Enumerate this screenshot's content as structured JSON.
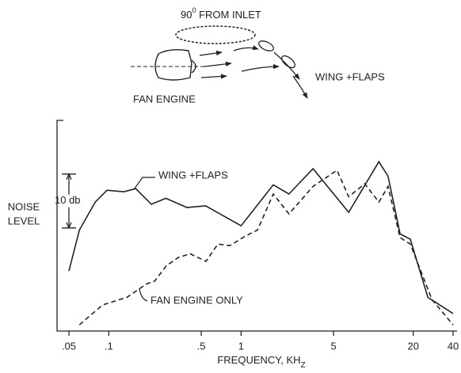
{
  "diagram": {
    "angle_label": {
      "number": "90",
      "superscript": "0",
      "rest": " FROM INLET"
    },
    "wing_label": "WING +FLAPS",
    "engine_label": "FAN ENGINE"
  },
  "chart_data": {
    "type": "line",
    "log_x": true,
    "xlabel": {
      "text": "FREQUENCY, KH",
      "subscript": "Z"
    },
    "ylabel": [
      "NOISE",
      "LEVEL"
    ],
    "xlim": [
      0.05,
      40
    ],
    "ylim": [
      -1,
      38
    ],
    "xticks": [
      {
        "value": 0.05,
        "label": ".05"
      },
      {
        "value": 0.1,
        "label": ".1"
      },
      {
        "value": 0.5,
        "label": ".5"
      },
      1,
      5,
      20,
      40
    ],
    "scale_bar": {
      "label": "10 db",
      "from": 28,
      "to": 18
    },
    "series": [
      {
        "name": "WING +FLAPS",
        "color": "#222",
        "dash": false,
        "x": [
          0.05,
          0.06,
          0.079,
          0.097,
          0.13,
          0.16,
          0.21,
          0.27,
          0.39,
          0.54,
          1,
          1.75,
          2.3,
          3.5,
          6.5,
          11,
          12.9,
          15.9,
          19,
          25.8,
          40
        ],
        "values": [
          10,
          17.6,
          22.8,
          25,
          24.7,
          25.3,
          22.4,
          23.5,
          21.8,
          22.1,
          18.4,
          26,
          24.3,
          29,
          20.9,
          30.3,
          27.6,
          16.9,
          15.9,
          5.1,
          2.1
        ]
      },
      {
        "name": "FAN ENGINE ONLY",
        "color": "#222",
        "dash": true,
        "x": [
          0.06,
          0.09,
          0.137,
          0.193,
          0.222,
          0.273,
          0.335,
          0.412,
          0.543,
          0.668,
          0.822,
          1.08,
          1.33,
          1.75,
          2.3,
          3.5,
          5.3,
          6.5,
          8.6,
          11,
          12.9,
          15.9,
          19,
          27.7,
          40
        ],
        "values": [
          0,
          3.7,
          5.1,
          7.6,
          8.1,
          11,
          12.5,
          13.2,
          11.8,
          15,
          14.7,
          16.5,
          17.6,
          24.3,
          20.6,
          25.7,
          28.7,
          23.8,
          26.2,
          22.8,
          25.7,
          16.2,
          15,
          4.7,
          0
        ]
      }
    ]
  }
}
